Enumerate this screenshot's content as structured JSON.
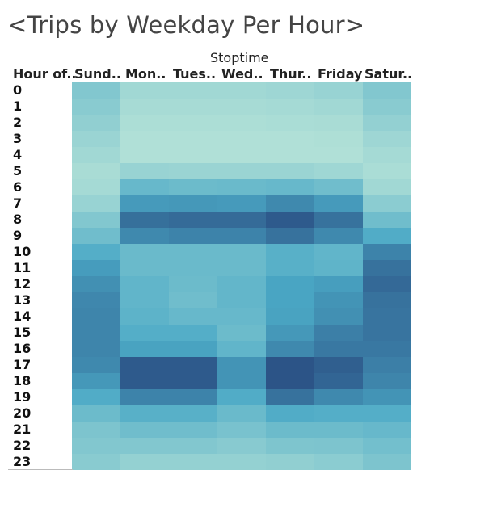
{
  "chart_data": {
    "type": "heatmap",
    "title": "<Trips by Weekday Per Hour>",
    "column_header": "Stoptime",
    "row_header": "Hour of..",
    "columns": [
      "Sund..",
      "Mon..",
      "Tues..",
      "Wed..",
      "Thur..",
      "Friday",
      "Satur.."
    ],
    "rows": [
      "0",
      "1",
      "2",
      "3",
      "4",
      "5",
      "6",
      "7",
      "8",
      "9",
      "10",
      "11",
      "12",
      "13",
      "14",
      "15",
      "16",
      "17",
      "18",
      "19",
      "20",
      "21",
      "22",
      "23"
    ],
    "values": [
      [
        0.3,
        0.13,
        0.13,
        0.13,
        0.15,
        0.18,
        0.3
      ],
      [
        0.26,
        0.1,
        0.1,
        0.1,
        0.11,
        0.13,
        0.26
      ],
      [
        0.22,
        0.07,
        0.07,
        0.07,
        0.08,
        0.09,
        0.21
      ],
      [
        0.17,
        0.05,
        0.05,
        0.05,
        0.05,
        0.06,
        0.15
      ],
      [
        0.13,
        0.05,
        0.05,
        0.05,
        0.05,
        0.05,
        0.11
      ],
      [
        0.09,
        0.18,
        0.17,
        0.17,
        0.17,
        0.14,
        0.08
      ],
      [
        0.11,
        0.45,
        0.42,
        0.43,
        0.45,
        0.4,
        0.13
      ],
      [
        0.18,
        0.67,
        0.68,
        0.67,
        0.75,
        0.67,
        0.25
      ],
      [
        0.3,
        0.87,
        0.89,
        0.89,
        0.97,
        0.86,
        0.4
      ],
      [
        0.4,
        0.75,
        0.78,
        0.78,
        0.86,
        0.75,
        0.57
      ],
      [
        0.55,
        0.43,
        0.43,
        0.43,
        0.53,
        0.48,
        0.78
      ],
      [
        0.66,
        0.43,
        0.43,
        0.43,
        0.53,
        0.49,
        0.86
      ],
      [
        0.72,
        0.48,
        0.42,
        0.47,
        0.62,
        0.65,
        0.9
      ],
      [
        0.76,
        0.48,
        0.4,
        0.47,
        0.62,
        0.7,
        0.86
      ],
      [
        0.77,
        0.5,
        0.45,
        0.45,
        0.63,
        0.72,
        0.85
      ],
      [
        0.77,
        0.55,
        0.55,
        0.42,
        0.68,
        0.8,
        0.85
      ],
      [
        0.77,
        0.63,
        0.63,
        0.48,
        0.75,
        0.83,
        0.83
      ],
      [
        0.75,
        0.97,
        0.97,
        0.7,
        1.0,
        0.95,
        0.8
      ],
      [
        0.68,
        0.97,
        0.97,
        0.7,
        1.0,
        0.92,
        0.77
      ],
      [
        0.57,
        0.78,
        0.78,
        0.57,
        0.86,
        0.75,
        0.7
      ],
      [
        0.42,
        0.53,
        0.53,
        0.43,
        0.57,
        0.55,
        0.55
      ],
      [
        0.33,
        0.4,
        0.4,
        0.35,
        0.42,
        0.42,
        0.45
      ],
      [
        0.3,
        0.3,
        0.3,
        0.27,
        0.32,
        0.33,
        0.38
      ],
      [
        0.26,
        0.2,
        0.2,
        0.2,
        0.22,
        0.25,
        0.33
      ]
    ],
    "color_low": "#b9e5d8",
    "color_mid": "#4ba9c6",
    "color_high": "#2c5487"
  }
}
